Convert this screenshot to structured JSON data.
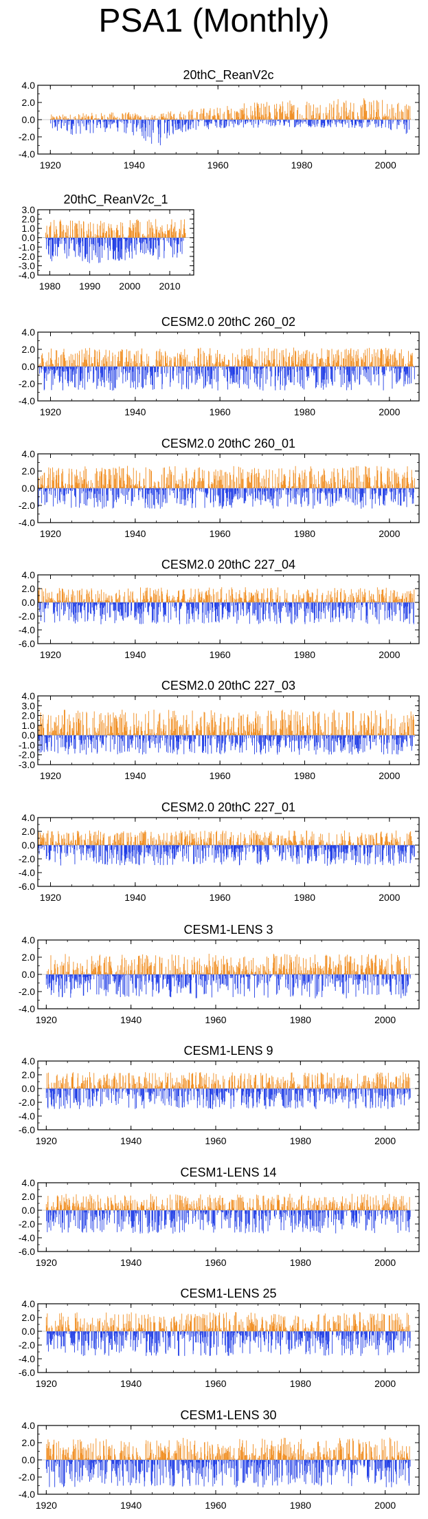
{
  "page": {
    "title": "PSA1 (Monthly)"
  },
  "colors": {
    "positive": "#f08c1e",
    "negative": "#1e3ce6",
    "frame": "#000000"
  },
  "chart_data": [
    {
      "type": "bar",
      "title": "20thC_ReanV2c",
      "x_range": [
        1917,
        2008
      ],
      "ylim": [
        -4,
        4
      ],
      "yticks": [
        "4.0",
        "2.0",
        "0.0",
        "-2.0",
        "-4.0"
      ],
      "ytick_values": [
        4,
        2,
        0,
        -2,
        -4
      ],
      "xticks": [
        "1920",
        "1940",
        "1960",
        "1980",
        "2000"
      ],
      "xtick_values": [
        1920,
        1940,
        1960,
        1980,
        2000
      ],
      "series": [
        {
          "x_start": 1920,
          "x_end": 2006,
          "envelope": {
            "x": [
              1920,
              1935,
              1940,
              1945,
              1950,
              1960,
              1980,
              2000,
              2006
            ],
            "pos": [
              0.6,
              0.9,
              0.9,
              0.5,
              1.2,
              1.6,
              2.6,
              2.5,
              2.2
            ],
            "neg": [
              -2.0,
              -1.4,
              -2.0,
              -3.5,
              -1.6,
              -1.0,
              -0.9,
              -1.1,
              -1.8
            ]
          }
        }
      ]
    },
    {
      "type": "bar",
      "title": "20thC_ReanV2c_1",
      "x_range": [
        1977,
        2016
      ],
      "ylim": [
        -4,
        3
      ],
      "yticks": [
        "3.0",
        "2.0",
        "1.0",
        "0.0",
        "-1.0",
        "-2.0",
        "-3.0",
        "-4.0"
      ],
      "ytick_values": [
        3,
        2,
        1,
        0,
        -1,
        -2,
        -3,
        -4
      ],
      "xticks": [
        "1980",
        "1990",
        "2000",
        "2010"
      ],
      "xtick_values": [
        1980,
        1990,
        2000,
        2010
      ],
      "series": [
        {
          "x_start": 1979,
          "x_end": 2014,
          "envelope": {
            "x": [
              1979,
              1990,
              2000,
              2014
            ],
            "pos": [
              2.2,
              2.0,
              2.0,
              2.0
            ],
            "neg": [
              -2.5,
              -2.8,
              -2.5,
              -2.2
            ]
          }
        }
      ]
    },
    {
      "type": "bar",
      "title": "CESM2.0 20thC 260_02",
      "x_range": [
        1917,
        2007
      ],
      "ylim": [
        -4,
        4
      ],
      "yticks": [
        "4.0",
        "2.0",
        "0.0",
        "-2.0",
        "-4.0"
      ],
      "ytick_values": [
        4,
        2,
        0,
        -2,
        -4
      ],
      "xticks": [
        "1920",
        "1940",
        "1960",
        "1980",
        "2000"
      ],
      "xtick_values": [
        1920,
        1940,
        1960,
        1980,
        2000
      ],
      "series": [
        {
          "x_start": 1917,
          "x_end": 2006,
          "envelope": {
            "x": [
              1917,
              2006
            ],
            "pos": [
              2.2,
              2.2
            ],
            "neg": [
              -2.8,
              -2.8
            ]
          }
        }
      ]
    },
    {
      "type": "bar",
      "title": "CESM2.0 20thC 260_01",
      "x_range": [
        1917,
        2007
      ],
      "ylim": [
        -4,
        4
      ],
      "yticks": [
        "4.0",
        "2.0",
        "0.0",
        "-2.0",
        "-4.0"
      ],
      "ytick_values": [
        4,
        2,
        0,
        -2,
        -4
      ],
      "xticks": [
        "1920",
        "1940",
        "1960",
        "1980",
        "2000"
      ],
      "xtick_values": [
        1920,
        1940,
        1960,
        1980,
        2000
      ],
      "series": [
        {
          "x_start": 1917,
          "x_end": 2006,
          "envelope": {
            "x": [
              1917,
              2006
            ],
            "pos": [
              2.6,
              2.6
            ],
            "neg": [
              -2.4,
              -2.4
            ]
          }
        }
      ]
    },
    {
      "type": "bar",
      "title": "CESM2.0 20thC 227_04",
      "x_range": [
        1917,
        2007
      ],
      "ylim": [
        -6,
        4
      ],
      "yticks": [
        "4.0",
        "2.0",
        "0.0",
        "-2.0",
        "-4.0",
        "-6.0"
      ],
      "ytick_values": [
        4,
        2,
        0,
        -2,
        -4,
        -6
      ],
      "xticks": [
        "1920",
        "1940",
        "1960",
        "1980",
        "2000"
      ],
      "xtick_values": [
        1920,
        1940,
        1960,
        1980,
        2000
      ],
      "series": [
        {
          "x_start": 1917,
          "x_end": 2006,
          "envelope": {
            "x": [
              1917,
              2006
            ],
            "pos": [
              2.2,
              2.2
            ],
            "neg": [
              -3.2,
              -3.2
            ]
          }
        }
      ]
    },
    {
      "type": "bar",
      "title": "CESM2.0 20thC 227_03",
      "x_range": [
        1917,
        2007
      ],
      "ylim": [
        -3,
        4
      ],
      "yticks": [
        "4.0",
        "3.0",
        "2.0",
        "1.0",
        "0.0",
        "-1.0",
        "-2.0",
        "-3.0"
      ],
      "ytick_values": [
        4,
        3,
        2,
        1,
        0,
        -1,
        -2,
        -3
      ],
      "xticks": [
        "1920",
        "1940",
        "1960",
        "1980",
        "2000"
      ],
      "xtick_values": [
        1920,
        1940,
        1960,
        1980,
        2000
      ],
      "series": [
        {
          "x_start": 1917,
          "x_end": 2006,
          "envelope": {
            "x": [
              1917,
              2006
            ],
            "pos": [
              2.6,
              2.6
            ],
            "neg": [
              -2.0,
              -2.0
            ]
          }
        }
      ]
    },
    {
      "type": "bar",
      "title": "CESM2.0 20thC 227_01",
      "x_range": [
        1917,
        2007
      ],
      "ylim": [
        -6,
        4
      ],
      "yticks": [
        "4.0",
        "2.0",
        "0.0",
        "-2.0",
        "-4.0",
        "-6.0"
      ],
      "ytick_values": [
        4,
        2,
        0,
        -2,
        -4,
        -6
      ],
      "xticks": [
        "1920",
        "1940",
        "1960",
        "1980",
        "2000"
      ],
      "xtick_values": [
        1920,
        1940,
        1960,
        1980,
        2000
      ],
      "series": [
        {
          "x_start": 1917,
          "x_end": 2006,
          "envelope": {
            "x": [
              1917,
              2006
            ],
            "pos": [
              2.2,
              2.2
            ],
            "neg": [
              -3.0,
              -3.0
            ]
          }
        }
      ]
    },
    {
      "type": "bar",
      "title": "CESM1-LENS 3",
      "x_range": [
        1918,
        2008
      ],
      "ylim": [
        -4,
        4
      ],
      "yticks": [
        "4.0",
        "2.0",
        "0.0",
        "-2.0",
        "-4.0"
      ],
      "ytick_values": [
        4,
        2,
        0,
        -2,
        -4
      ],
      "xticks": [
        "1920",
        "1940",
        "1960",
        "1980",
        "2000"
      ],
      "xtick_values": [
        1920,
        1940,
        1960,
        1980,
        2000
      ],
      "series": [
        {
          "x_start": 1920,
          "x_end": 2006,
          "envelope": {
            "x": [
              1920,
              2006
            ],
            "pos": [
              2.4,
              2.4
            ],
            "neg": [
              -2.8,
              -2.8
            ]
          }
        }
      ]
    },
    {
      "type": "bar",
      "title": "CESM1-LENS 9",
      "x_range": [
        1918,
        2008
      ],
      "ylim": [
        -6,
        4
      ],
      "yticks": [
        "4.0",
        "2.0",
        "0.0",
        "-2.0",
        "-4.0",
        "-6.0"
      ],
      "ytick_values": [
        4,
        2,
        0,
        -2,
        -4,
        -6
      ],
      "xticks": [
        "1920",
        "1940",
        "1960",
        "1980",
        "2000"
      ],
      "xtick_values": [
        1920,
        1940,
        1960,
        1980,
        2000
      ],
      "series": [
        {
          "x_start": 1920,
          "x_end": 2006,
          "envelope": {
            "x": [
              1920,
              2006
            ],
            "pos": [
              2.4,
              2.4
            ],
            "neg": [
              -3.0,
              -3.0
            ]
          }
        }
      ]
    },
    {
      "type": "bar",
      "title": "CESM1-LENS 14",
      "x_range": [
        1918,
        2008
      ],
      "ylim": [
        -6,
        4
      ],
      "yticks": [
        "4.0",
        "2.0",
        "0.0",
        "-2.0",
        "-4.0",
        "-6.0"
      ],
      "ytick_values": [
        4,
        2,
        0,
        -2,
        -4,
        -6
      ],
      "xticks": [
        "1920",
        "1940",
        "1960",
        "1980",
        "2000"
      ],
      "xtick_values": [
        1920,
        1940,
        1960,
        1980,
        2000
      ],
      "series": [
        {
          "x_start": 1920,
          "x_end": 2006,
          "envelope": {
            "x": [
              1920,
              2006
            ],
            "pos": [
              2.4,
              2.4
            ],
            "neg": [
              -3.4,
              -3.4
            ]
          }
        }
      ]
    },
    {
      "type": "bar",
      "title": "CESM1-LENS 25",
      "x_range": [
        1918,
        2008
      ],
      "ylim": [
        -6,
        4
      ],
      "yticks": [
        "4.0",
        "2.0",
        "0.0",
        "-2.0",
        "-4.0",
        "-6.0"
      ],
      "ytick_values": [
        4,
        2,
        0,
        -2,
        -4,
        -6
      ],
      "xticks": [
        "1920",
        "1940",
        "1960",
        "1980",
        "2000"
      ],
      "xtick_values": [
        1920,
        1940,
        1960,
        1980,
        2000
      ],
      "series": [
        {
          "x_start": 1920,
          "x_end": 2006,
          "envelope": {
            "x": [
              1920,
              2006
            ],
            "pos": [
              2.8,
              2.8
            ],
            "neg": [
              -3.6,
              -3.6
            ]
          }
        }
      ]
    },
    {
      "type": "bar",
      "title": "CESM1-LENS 30",
      "x_range": [
        1918,
        2008
      ],
      "ylim": [
        -4,
        4
      ],
      "yticks": [
        "4.0",
        "2.0",
        "0.0",
        "-2.0",
        "-4.0"
      ],
      "ytick_values": [
        4,
        2,
        0,
        -2,
        -4
      ],
      "xticks": [
        "1920",
        "1940",
        "1960",
        "1980",
        "2000"
      ],
      "xtick_values": [
        1920,
        1940,
        1960,
        1980,
        2000
      ],
      "series": [
        {
          "x_start": 1920,
          "x_end": 2006,
          "envelope": {
            "x": [
              1920,
              2006
            ],
            "pos": [
              2.6,
              2.6
            ],
            "neg": [
              -3.2,
              -3.2
            ]
          }
        }
      ]
    }
  ]
}
